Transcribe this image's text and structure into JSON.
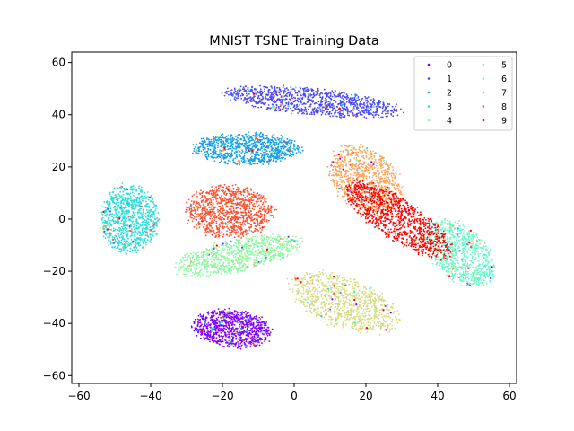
{
  "chart_data": {
    "type": "scatter",
    "title": "MNIST TSNE Training Data",
    "xlabel": "",
    "ylabel": "",
    "xlim": [
      -62,
      62
    ],
    "ylim": [
      -63,
      64
    ],
    "xticks": [
      -60,
      -40,
      -20,
      0,
      20,
      40,
      60
    ],
    "yticks": [
      -60,
      -40,
      -20,
      0,
      20,
      40,
      60
    ],
    "xtick_labels": [
      "−60",
      "−40",
      "−20",
      "0",
      "20",
      "40",
      "60"
    ],
    "ytick_labels": [
      "−60",
      "−40",
      "−20",
      "0",
      "20",
      "40",
      "60"
    ],
    "grid": false,
    "legend_placement": "top-right",
    "legend_columns": 2,
    "series": [
      {
        "name": "0",
        "color": "#8000ff",
        "center": [
          -17,
          -42
        ],
        "spread": [
          11,
          7
        ],
        "rotation": -10,
        "count": 900
      },
      {
        "name": "1",
        "color": "#4a48f6",
        "center": [
          5,
          45
        ],
        "spread": [
          24,
          5
        ],
        "rotation": -8,
        "count": 1000
      },
      {
        "name": "2",
        "color": "#14a0e8",
        "center": [
          -13,
          27
        ],
        "spread": [
          15,
          6
        ],
        "rotation": 0,
        "count": 900
      },
      {
        "name": "3",
        "color": "#2adcdc",
        "center": [
          -46,
          0
        ],
        "spread": [
          8,
          13
        ],
        "rotation": 0,
        "count": 900
      },
      {
        "name": "4",
        "color": "#8cf8a0",
        "center": [
          -16,
          -14
        ],
        "spread": [
          18,
          6
        ],
        "rotation": 17,
        "count": 850
      },
      {
        "name": "5",
        "color": "#d4dc7f",
        "center": [
          14,
          -32
        ],
        "spread": [
          17,
          9
        ],
        "rotation": -30,
        "count": 900
      },
      {
        "name": "6",
        "color": "#66f9c9",
        "center": [
          46,
          -13
        ],
        "spread": [
          8,
          14
        ],
        "rotation": 30,
        "count": 850
      },
      {
        "name": "7",
        "color": "#ffa256",
        "center": [
          20,
          15
        ],
        "spread": [
          9,
          14
        ],
        "rotation": 25,
        "count": 850
      },
      {
        "name": "8",
        "color": "#ff5030",
        "center": [
          -18,
          3
        ],
        "spread": [
          12,
          10
        ],
        "rotation": 0,
        "count": 1000
      },
      {
        "name": "9",
        "color": "#ff0000",
        "center": [
          29,
          0
        ],
        "spread": [
          7,
          20
        ],
        "rotation": 45,
        "count": 1000
      }
    ]
  }
}
